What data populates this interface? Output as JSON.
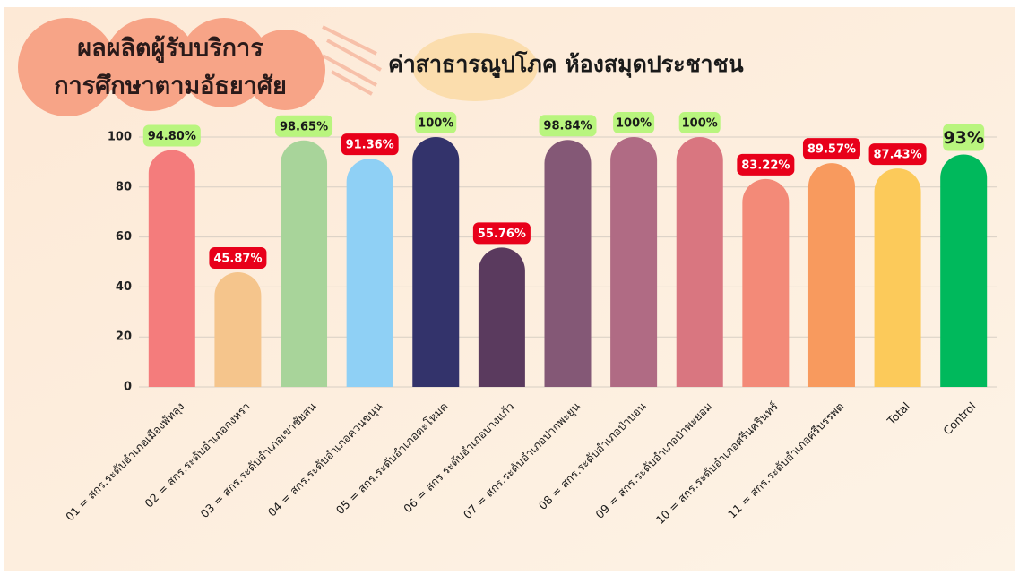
{
  "chart_data": {
    "type": "bar",
    "title_lines": [
      "ผลผลิตผู้รับบริการ",
      "การศึกษาตามอัธยาศัย"
    ],
    "subtitle": "ค่าสาธารณูปโภค ห้องสมุดประชาชน",
    "categories": [
      "01 = สกร.ระดับอำเภอเมืองพัทลุง",
      "02 = สกร.ระดับอำเภอกงหรา",
      "03 = สกร.ระดับอำเภอเขาชัยสน",
      "04 = สกร.ระดับอำเภอควนขนุน",
      "05 = สกร.ระดับอำเภอตะโหมด",
      "06 = สกร.ระดับอำเภอบางแก้ว",
      "07 = สกร.ระดับอำเภอปากพะยูน",
      "08 = สกร.ระดับอำเภอป่าบอน",
      "09 = สกร.ระดับอำเภอป่าพะยอม",
      "10 = สกร.ระดับอำเภอศรีนครินทร์",
      "11 = สกร.ระดับอำเภอศรีบรรพต",
      "Total",
      "Control"
    ],
    "values": [
      94.8,
      45.87,
      98.65,
      91.36,
      100,
      55.76,
      98.84,
      100,
      100,
      83.22,
      89.57,
      87.43,
      93
    ],
    "value_labels": [
      "94.80%",
      "45.87%",
      "98.65%",
      "91.36%",
      "100%",
      "55.76%",
      "98.84%",
      "100%",
      "100%",
      "83.22%",
      "89.57%",
      "87.43%",
      "93%"
    ],
    "colors": [
      "#f47c7c",
      "#f5c58c",
      "#a8d49a",
      "#8fd0f5",
      "#33336b",
      "#5a3a5e",
      "#845876",
      "#b06b84",
      "#d97680",
      "#f38a78",
      "#f89a5e",
      "#fcca5a",
      "#00b95c"
    ],
    "label_colors": [
      "#b9f57e",
      "#e8001a",
      "#b9f57e",
      "#e8001a",
      "#b9f57e",
      "#e8001a",
      "#b9f57e",
      "#b9f57e",
      "#b9f57e",
      "#e8001a",
      "#e8001a",
      "#e8001a",
      "#b9f57e"
    ],
    "ylim": [
      0,
      100
    ],
    "yticks": [
      0,
      20,
      40,
      60,
      80,
      100
    ],
    "grid": true
  }
}
